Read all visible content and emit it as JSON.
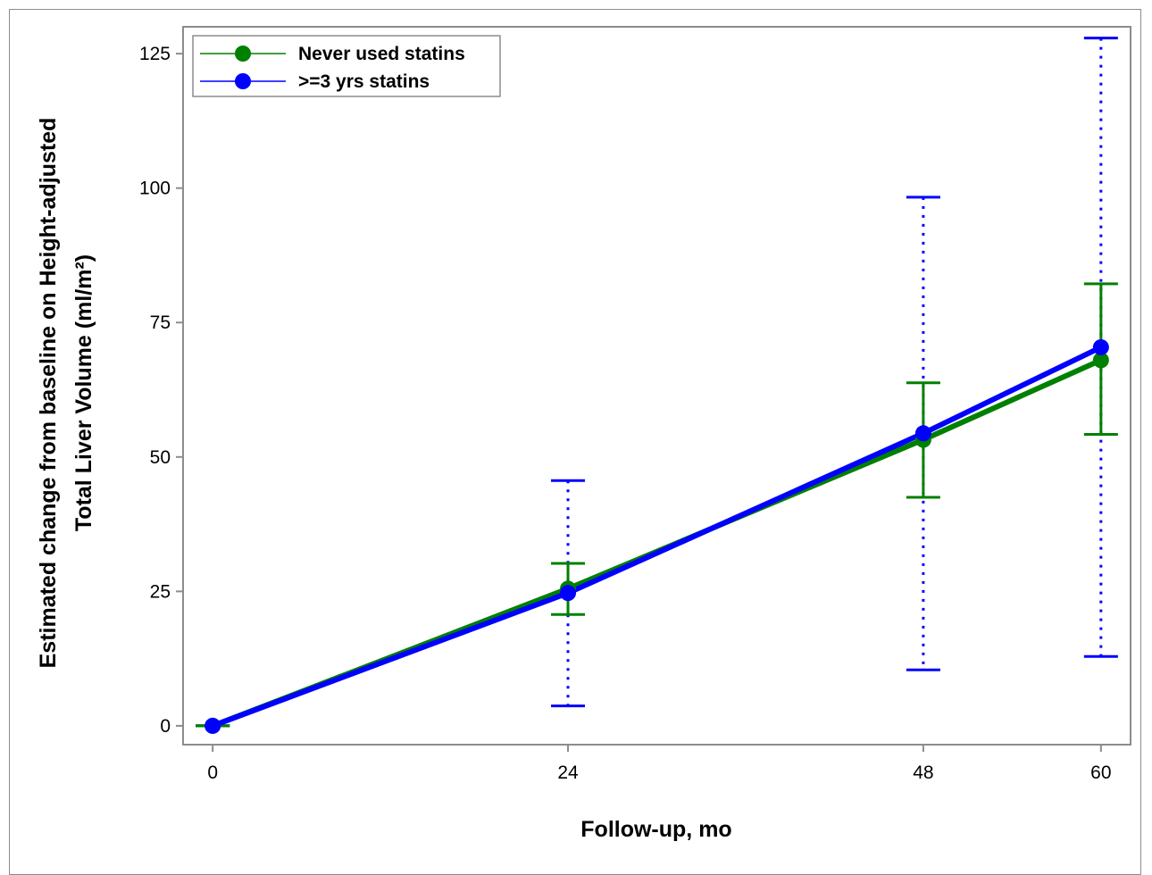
{
  "chart_data": {
    "type": "line",
    "title": "",
    "xlabel": "Follow-up, mo",
    "ylabel_line1": "Estimated change from baseline on Height-adjusted",
    "ylabel_line2": "Total Liver Volume (ml/m²)",
    "x": [
      0,
      24,
      48,
      60
    ],
    "x_ticks": [
      0,
      24,
      48,
      60
    ],
    "y_ticks": [
      0,
      25,
      50,
      75,
      100,
      125
    ],
    "xlim": [
      -2,
      62
    ],
    "ylim": [
      -3.5,
      130
    ],
    "grid": false,
    "legend_position": "top-left",
    "series": [
      {
        "name": "Never used statins",
        "color": "#008000",
        "error_style": "solid",
        "values": [
          0,
          25.5,
          53.2,
          68.0
        ],
        "lower": [
          0,
          20.7,
          42.5,
          54.2
        ],
        "upper": [
          0,
          30.2,
          63.8,
          82.2
        ]
      },
      {
        "name": ">=3 yrs statins",
        "color": "#0000ff",
        "error_style": "dotted",
        "values": [
          0,
          24.7,
          54.4,
          70.4
        ],
        "lower": [
          0,
          3.7,
          10.4,
          12.9
        ],
        "upper": [
          0,
          45.6,
          98.3,
          127.9
        ]
      }
    ]
  }
}
